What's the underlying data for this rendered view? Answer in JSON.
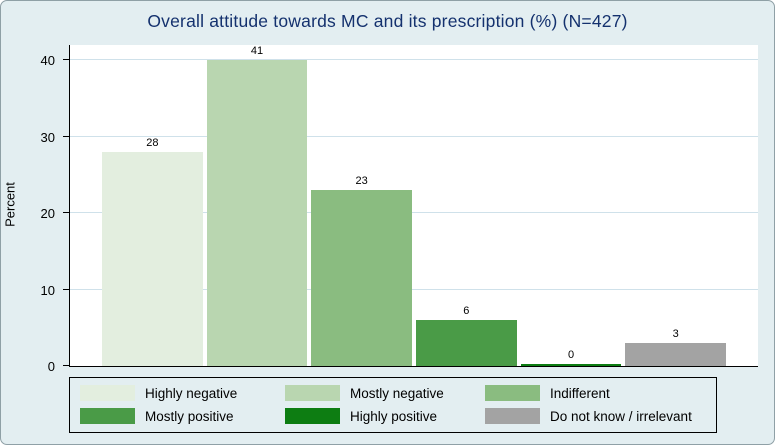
{
  "chart_data": {
    "type": "bar",
    "title": "Overall attitude towards MC and its prescription (%) (N=427)",
    "ylabel": "Percent",
    "categories": [
      "Highly negative",
      "Mostly negative",
      "Indifferent",
      "Mostly positive",
      "Highly positive",
      "Do not know / irrelevant"
    ],
    "values": [
      28,
      41,
      23,
      6,
      0,
      3
    ],
    "value_labels": [
      "28",
      "41",
      "23",
      "6",
      "0",
      "3"
    ],
    "bar_colors": [
      "#e3eedf",
      "#b9d6b0",
      "#8abc80",
      "#4a9b47",
      "#0d7d12",
      "#a3a3a3"
    ],
    "ylim": [
      0,
      42
    ],
    "yticks": [
      0,
      10,
      20,
      30,
      40
    ],
    "grid": true,
    "gridline_color": "#cfe1ea",
    "legend_position": "bottom",
    "title_color": "#14316e",
    "background_color": "#e3eef1",
    "plot_background": "#ffffff"
  }
}
